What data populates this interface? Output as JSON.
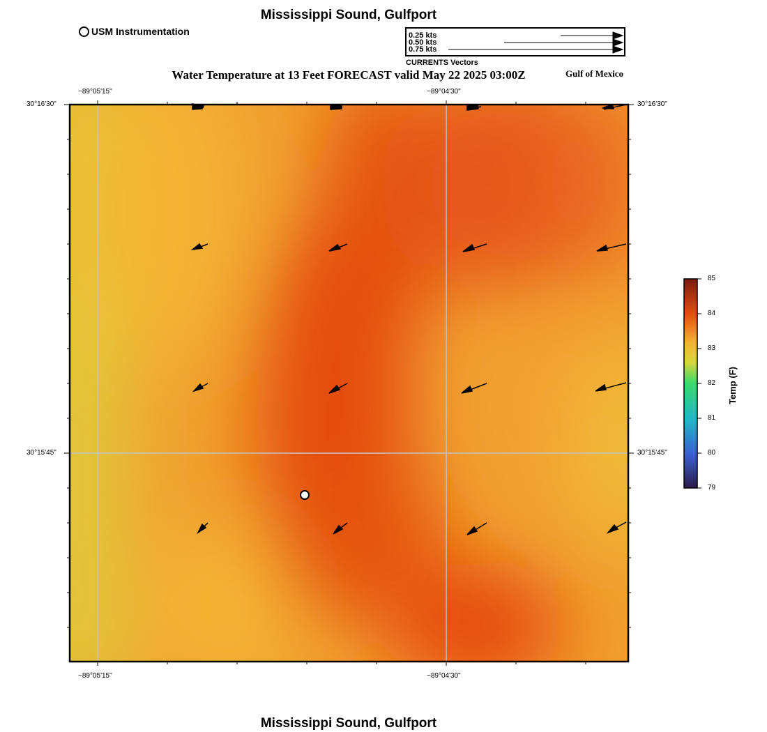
{
  "title": "Mississippi Sound, Gulfport",
  "footer_title": "Mississippi Sound, Gulfport",
  "station_legend": "USM Instrumentation",
  "subtitle": "Water Temperature at 13 Feet FORECAST valid May 22 2025 03:00Z",
  "region_label": "Gulf of Mexico",
  "vector_legend": {
    "caption": "CURRENTS Vectors",
    "entries": [
      {
        "label": "0.25 kts",
        "speed_kts": 0.25
      },
      {
        "label": "0.50 kts",
        "speed_kts": 0.5
      },
      {
        "label": "0.75 kts",
        "speed_kts": 0.75
      }
    ]
  },
  "axes": {
    "lon_ticks": [
      "−89°05'15\"",
      "−89°04'30\""
    ],
    "lat_ticks": [
      "30°16'30\"",
      "30°15'45\""
    ]
  },
  "colorbar": {
    "title": "Temp (F)",
    "min": 79,
    "max": 85,
    "tick_labels": [
      "85",
      "84",
      "83",
      "82",
      "81",
      "80",
      "79"
    ],
    "stops": [
      "#2b1b4a",
      "#3a5fd0",
      "#20b8c8",
      "#38d96a",
      "#d8d83a",
      "#f5a32a",
      "#e4500f",
      "#7a1a10"
    ]
  },
  "colors": {
    "field_cool": "#e3cc3e",
    "field_mid": "#f3ad34",
    "field_warm": "#e4500f",
    "grid": "#c0c0c0"
  }
}
